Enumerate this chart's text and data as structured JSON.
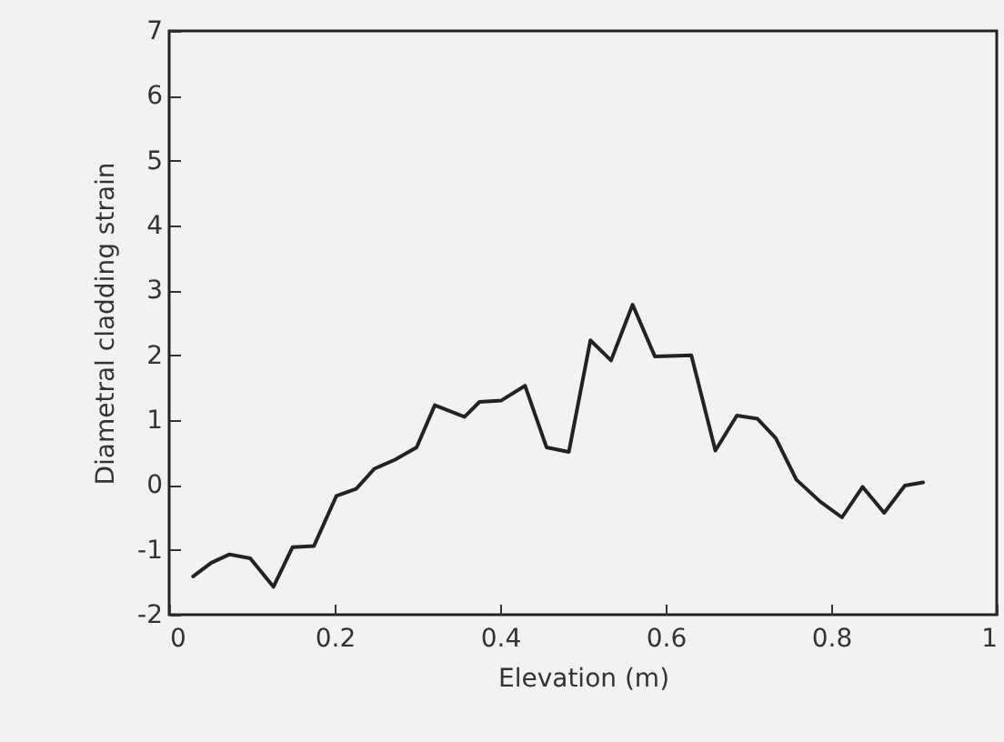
{
  "chart_data": {
    "type": "line",
    "xlabel": "Elevation (m)",
    "ylabel": "Diametral cladding strain",
    "xlim": [
      0,
      1
    ],
    "xticks": [
      0,
      0.2,
      0.4,
      0.6,
      0.8,
      1
    ],
    "ylim": [
      -2,
      7
    ],
    "yticks": [
      -2,
      -1,
      0,
      1,
      2,
      3,
      4,
      5,
      6,
      7
    ],
    "grid": false,
    "marker": "none",
    "line_style": "solid",
    "x": [
      0.029,
      0.051,
      0.073,
      0.098,
      0.126,
      0.149,
      0.175,
      0.202,
      0.226,
      0.248,
      0.273,
      0.299,
      0.321,
      0.357,
      0.375,
      0.401,
      0.43,
      0.456,
      0.483,
      0.509,
      0.534,
      0.56,
      0.587,
      0.631,
      0.66,
      0.686,
      0.711,
      0.733,
      0.758,
      0.787,
      0.813,
      0.838,
      0.864,
      0.889,
      0.911
    ],
    "series": [
      {
        "color": "#222222",
        "values": [
          -1.41,
          -1.2,
          -1.07,
          -1.13,
          -1.57,
          -0.96,
          -0.94,
          -0.17,
          -0.06,
          0.25,
          0.39,
          0.58,
          1.23,
          1.05,
          1.28,
          1.3,
          1.53,
          0.58,
          0.51,
          2.23,
          1.92,
          2.78,
          1.98,
          2.0,
          0.53,
          1.07,
          1.02,
          0.72,
          0.08,
          -0.26,
          -0.5,
          -0.03,
          -0.43,
          -0.01,
          0.04
        ]
      }
    ]
  }
}
